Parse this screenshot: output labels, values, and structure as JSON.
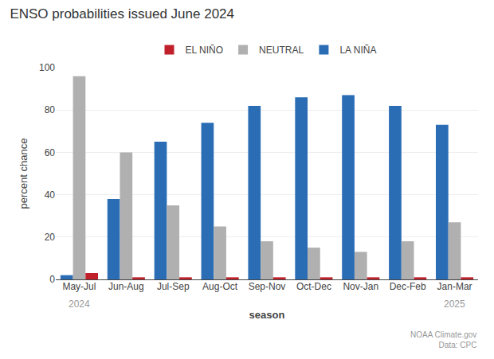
{
  "chart_data": {
    "type": "bar",
    "title": "ENSO probabilities issued June 2024",
    "xlabel": "season",
    "ylabel": "percent chance",
    "categories": [
      "May-Jul",
      "Jun-Aug",
      "Jul-Sep",
      "Aug-Oct",
      "Sep-Nov",
      "Oct-Dec",
      "Nov-Jan",
      "Dec-Feb",
      "Jan-Mar"
    ],
    "series": [
      {
        "name": "LA NIÑA",
        "color": "#2a6db5",
        "values": [
          2,
          38,
          65,
          74,
          82,
          86,
          87,
          82,
          73
        ]
      },
      {
        "name": "NEUTRAL",
        "color": "#b0b0b0",
        "values": [
          96,
          60,
          35,
          25,
          18,
          15,
          13,
          18,
          27
        ]
      },
      {
        "name": "EL NIÑO",
        "color": "#c0202a",
        "values": [
          3,
          1,
          1,
          1,
          1,
          1,
          1,
          1,
          1
        ]
      }
    ],
    "ylim": [
      0,
      100
    ],
    "yticks": [
      0,
      20,
      40,
      60,
      80,
      100
    ],
    "grid": true,
    "legend": "top",
    "annotations": [
      {
        "text": "2024",
        "x": "May-Jul"
      },
      {
        "text": "2025",
        "x": "Jan-Mar"
      },
      {
        "text": "NOAA Climate.gov\nData: CPC"
      }
    ]
  }
}
